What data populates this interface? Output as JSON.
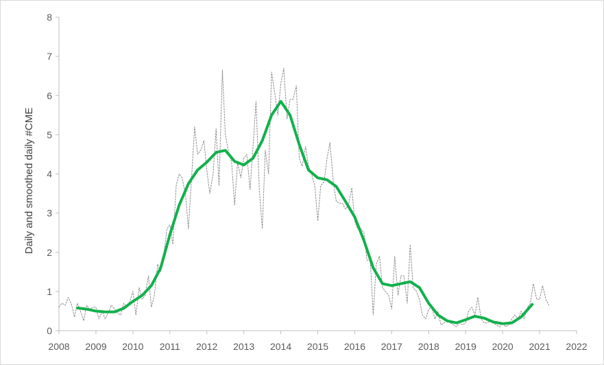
{
  "chart_data": {
    "type": "line",
    "title": "",
    "xlabel": "",
    "ylabel": "Daily and smoothed daily #CME",
    "xlim": [
      2008,
      2022
    ],
    "ylim": [
      0,
      8
    ],
    "x_ticks": [
      "2008",
      "2009",
      "2010",
      "2011",
      "2012",
      "2013",
      "2014",
      "2015",
      "2016",
      "2017",
      "2018",
      "2019",
      "2020",
      "2021",
      "2022"
    ],
    "y_ticks": [
      "0",
      "1",
      "2",
      "3",
      "4",
      "5",
      "6",
      "7",
      "8"
    ],
    "grid": false,
    "legend": "none",
    "series": [
      {
        "style": "dashed",
        "color": "#8c8c8c",
        "points": [
          [
            2008.0,
            0.6
          ],
          [
            2008.08,
            0.7
          ],
          [
            2008.17,
            0.65
          ],
          [
            2008.25,
            0.85
          ],
          [
            2008.33,
            0.7
          ],
          [
            2008.42,
            0.35
          ],
          [
            2008.5,
            0.7
          ],
          [
            2008.58,
            0.5
          ],
          [
            2008.67,
            0.25
          ],
          [
            2008.75,
            0.65
          ],
          [
            2008.83,
            0.55
          ],
          [
            2008.92,
            0.6
          ],
          [
            2009.0,
            0.6
          ],
          [
            2009.08,
            0.3
          ],
          [
            2009.17,
            0.5
          ],
          [
            2009.25,
            0.3
          ],
          [
            2009.33,
            0.45
          ],
          [
            2009.42,
            0.65
          ],
          [
            2009.5,
            0.55
          ],
          [
            2009.58,
            0.45
          ],
          [
            2009.67,
            0.4
          ],
          [
            2009.75,
            0.7
          ],
          [
            2009.83,
            0.6
          ],
          [
            2009.92,
            0.75
          ],
          [
            2010.0,
            1.0
          ],
          [
            2010.08,
            0.4
          ],
          [
            2010.17,
            1.1
          ],
          [
            2010.25,
            0.8
          ],
          [
            2010.33,
            0.9
          ],
          [
            2010.42,
            1.4
          ],
          [
            2010.5,
            0.6
          ],
          [
            2010.58,
            0.9
          ],
          [
            2010.67,
            1.7
          ],
          [
            2010.75,
            1.5
          ],
          [
            2010.83,
            1.9
          ],
          [
            2010.92,
            2.6
          ],
          [
            2011.0,
            2.7
          ],
          [
            2011.08,
            2.2
          ],
          [
            2011.17,
            3.7
          ],
          [
            2011.25,
            4.0
          ],
          [
            2011.33,
            3.9
          ],
          [
            2011.42,
            3.5
          ],
          [
            2011.5,
            2.6
          ],
          [
            2011.58,
            3.8
          ],
          [
            2011.67,
            5.2
          ],
          [
            2011.75,
            4.5
          ],
          [
            2011.83,
            4.6
          ],
          [
            2011.92,
            4.85
          ],
          [
            2012.0,
            4.1
          ],
          [
            2012.08,
            3.5
          ],
          [
            2012.17,
            4.0
          ],
          [
            2012.25,
            5.15
          ],
          [
            2012.33,
            3.7
          ],
          [
            2012.42,
            6.65
          ],
          [
            2012.5,
            5.0
          ],
          [
            2012.58,
            4.6
          ],
          [
            2012.67,
            4.3
          ],
          [
            2012.75,
            3.2
          ],
          [
            2012.83,
            4.3
          ],
          [
            2012.92,
            3.9
          ],
          [
            2013.0,
            4.4
          ],
          [
            2013.08,
            4.5
          ],
          [
            2013.17,
            3.6
          ],
          [
            2013.25,
            4.7
          ],
          [
            2013.33,
            5.85
          ],
          [
            2013.42,
            3.6
          ],
          [
            2013.5,
            2.6
          ],
          [
            2013.58,
            4.6
          ],
          [
            2013.67,
            4.0
          ],
          [
            2013.75,
            6.6
          ],
          [
            2013.83,
            6.1
          ],
          [
            2013.92,
            5.5
          ],
          [
            2014.0,
            6.3
          ],
          [
            2014.08,
            6.7
          ],
          [
            2014.17,
            5.4
          ],
          [
            2014.25,
            5.9
          ],
          [
            2014.33,
            5.9
          ],
          [
            2014.42,
            6.25
          ],
          [
            2014.5,
            4.4
          ],
          [
            2014.58,
            4.2
          ],
          [
            2014.67,
            4.7
          ],
          [
            2014.75,
            4.2
          ],
          [
            2014.83,
            4.0
          ],
          [
            2014.92,
            3.7
          ],
          [
            2015.0,
            2.8
          ],
          [
            2015.08,
            3.7
          ],
          [
            2015.17,
            3.8
          ],
          [
            2015.25,
            4.4
          ],
          [
            2015.33,
            4.8
          ],
          [
            2015.42,
            3.8
          ],
          [
            2015.5,
            3.3
          ],
          [
            2015.58,
            3.25
          ],
          [
            2015.67,
            3.25
          ],
          [
            2015.75,
            3.1
          ],
          [
            2015.83,
            3.2
          ],
          [
            2015.92,
            3.65
          ],
          [
            2016.0,
            2.8
          ],
          [
            2016.08,
            2.6
          ],
          [
            2016.17,
            2.6
          ],
          [
            2016.25,
            2.5
          ],
          [
            2016.33,
            1.8
          ],
          [
            2016.42,
            1.8
          ],
          [
            2016.5,
            0.4
          ],
          [
            2016.58,
            1.7
          ],
          [
            2016.67,
            1.9
          ],
          [
            2016.75,
            1.1
          ],
          [
            2016.83,
            1.0
          ],
          [
            2016.92,
            0.9
          ],
          [
            2017.0,
            0.55
          ],
          [
            2017.08,
            1.9
          ],
          [
            2017.17,
            0.9
          ],
          [
            2017.25,
            1.4
          ],
          [
            2017.33,
            1.4
          ],
          [
            2017.42,
            0.7
          ],
          [
            2017.5,
            2.2
          ],
          [
            2017.58,
            1.1
          ],
          [
            2017.67,
            1.0
          ],
          [
            2017.75,
            0.8
          ],
          [
            2017.83,
            0.4
          ],
          [
            2017.92,
            0.3
          ],
          [
            2018.0,
            0.55
          ],
          [
            2018.08,
            0.6
          ],
          [
            2018.17,
            0.3
          ],
          [
            2018.25,
            0.5
          ],
          [
            2018.33,
            0.15
          ],
          [
            2018.42,
            0.2
          ],
          [
            2018.5,
            0.25
          ],
          [
            2018.58,
            0.2
          ],
          [
            2018.67,
            0.15
          ],
          [
            2018.75,
            0.1
          ],
          [
            2018.83,
            0.2
          ],
          [
            2018.92,
            0.15
          ],
          [
            2019.0,
            0.2
          ],
          [
            2019.08,
            0.5
          ],
          [
            2019.17,
            0.6
          ],
          [
            2019.25,
            0.4
          ],
          [
            2019.33,
            0.85
          ],
          [
            2019.42,
            0.3
          ],
          [
            2019.5,
            0.2
          ],
          [
            2019.58,
            0.2
          ],
          [
            2019.67,
            0.25
          ],
          [
            2019.75,
            0.2
          ],
          [
            2019.83,
            0.15
          ],
          [
            2019.92,
            0.1
          ],
          [
            2020.0,
            0.2
          ],
          [
            2020.08,
            0.1
          ],
          [
            2020.17,
            0.15
          ],
          [
            2020.25,
            0.3
          ],
          [
            2020.33,
            0.4
          ],
          [
            2020.42,
            0.3
          ],
          [
            2020.5,
            0.5
          ],
          [
            2020.58,
            0.3
          ],
          [
            2020.67,
            0.6
          ],
          [
            2020.75,
            0.7
          ],
          [
            2020.83,
            1.2
          ],
          [
            2020.92,
            0.8
          ],
          [
            2021.0,
            0.8
          ],
          [
            2021.08,
            1.15
          ],
          [
            2021.17,
            0.8
          ],
          [
            2021.25,
            0.65
          ]
        ]
      },
      {
        "style": "solid",
        "color": "#12b04c",
        "points": [
          [
            2008.5,
            0.58
          ],
          [
            2008.75,
            0.55
          ],
          [
            2009.0,
            0.5
          ],
          [
            2009.25,
            0.48
          ],
          [
            2009.5,
            0.48
          ],
          [
            2009.75,
            0.57
          ],
          [
            2010.0,
            0.75
          ],
          [
            2010.25,
            0.9
          ],
          [
            2010.5,
            1.15
          ],
          [
            2010.75,
            1.6
          ],
          [
            2011.0,
            2.45
          ],
          [
            2011.25,
            3.2
          ],
          [
            2011.5,
            3.75
          ],
          [
            2011.75,
            4.1
          ],
          [
            2012.0,
            4.3
          ],
          [
            2012.25,
            4.55
          ],
          [
            2012.5,
            4.6
          ],
          [
            2012.75,
            4.32
          ],
          [
            2013.0,
            4.23
          ],
          [
            2013.25,
            4.4
          ],
          [
            2013.5,
            4.85
          ],
          [
            2013.75,
            5.5
          ],
          [
            2014.0,
            5.85
          ],
          [
            2014.25,
            5.5
          ],
          [
            2014.5,
            4.75
          ],
          [
            2014.75,
            4.1
          ],
          [
            2015.0,
            3.9
          ],
          [
            2015.25,
            3.85
          ],
          [
            2015.5,
            3.68
          ],
          [
            2015.75,
            3.3
          ],
          [
            2016.0,
            2.9
          ],
          [
            2016.25,
            2.3
          ],
          [
            2016.5,
            1.6
          ],
          [
            2016.75,
            1.2
          ],
          [
            2017.0,
            1.15
          ],
          [
            2017.25,
            1.2
          ],
          [
            2017.5,
            1.25
          ],
          [
            2017.75,
            1.1
          ],
          [
            2018.0,
            0.7
          ],
          [
            2018.25,
            0.4
          ],
          [
            2018.5,
            0.25
          ],
          [
            2018.75,
            0.2
          ],
          [
            2019.0,
            0.28
          ],
          [
            2019.25,
            0.37
          ],
          [
            2019.5,
            0.32
          ],
          [
            2019.75,
            0.22
          ],
          [
            2020.0,
            0.18
          ],
          [
            2020.25,
            0.2
          ],
          [
            2020.5,
            0.35
          ],
          [
            2020.8,
            0.67
          ]
        ]
      }
    ]
  },
  "colors": {
    "axis": "#bfbfbf",
    "tick_text": "#595959",
    "frame_border": "#d9d9d9"
  }
}
